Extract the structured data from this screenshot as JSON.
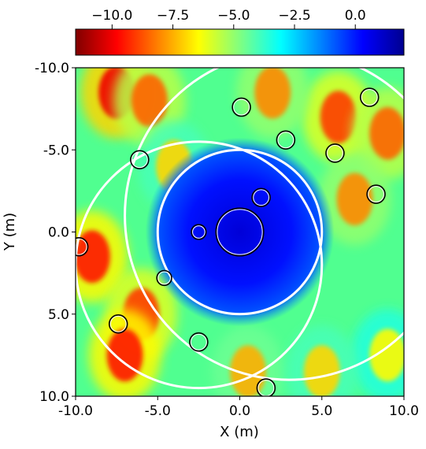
{
  "chart_data": {
    "type": "heatmap",
    "title": "",
    "xlabel": "X (m)",
    "ylabel": "Y (m)",
    "xlim": [
      -10.0,
      10.0
    ],
    "ylim": [
      10.0,
      -10.0
    ],
    "x_ticks": [
      "-10.0",
      "-5.0",
      "0.0",
      "5.0",
      "10.0"
    ],
    "y_ticks": [
      "-10.0",
      "-5.0",
      "0.0",
      "5.0",
      "10.0"
    ],
    "x_tick_values": [
      -10,
      -5,
      0,
      5,
      10
    ],
    "y_tick_values": [
      -10,
      -5,
      0,
      5,
      10
    ],
    "colorbar": {
      "orientation": "horizontal",
      "placement": "top",
      "colormap": "jet (reversed)",
      "range": [
        -11.5,
        2.0
      ],
      "tick_values": [
        -10.0,
        -7.5,
        -5.0,
        -2.5,
        0.0
      ],
      "tick_labels": [
        "−10.0",
        "−7.5",
        "−5.0",
        "−2.5",
        "0.0"
      ]
    },
    "colormap_stops": [
      "#800000",
      "#ff0000",
      "#ff8000",
      "#ffff00",
      "#80ff80",
      "#00ffff",
      "#0080ff",
      "#0000ff",
      "#00008f"
    ],
    "field": {
      "high_value_region": {
        "center": [
          0.0,
          0.0
        ],
        "radius": 5.0
      },
      "hot_spots": [
        {
          "x": -7.5,
          "y": -8.5,
          "value": -10.0
        },
        {
          "x": -9.0,
          "y": 1.5,
          "value": -9.5
        },
        {
          "x": -6.0,
          "y": 5.0,
          "value": -9.0
        },
        {
          "x": -7.0,
          "y": 7.5,
          "value": -9.5
        },
        {
          "x": -5.5,
          "y": -8.0,
          "value": -8.5
        },
        {
          "x": 6.0,
          "y": -7.0,
          "value": -9.0
        },
        {
          "x": 9.0,
          "y": -6.0,
          "value": -8.5
        },
        {
          "x": 7.0,
          "y": -2.0,
          "value": -8.0
        },
        {
          "x": -4.0,
          "y": -4.0,
          "value": -7.0
        },
        {
          "x": 0.5,
          "y": 8.5,
          "value": -7.5
        },
        {
          "x": 2.0,
          "y": -8.5,
          "value": -8.0
        },
        {
          "x": 9.0,
          "y": 7.5,
          "value": -6.5
        },
        {
          "x": 5.0,
          "y": 8.5,
          "value": -7.0
        }
      ]
    },
    "large_circles": [
      {
        "cx": 0.0,
        "cy": 0.0,
        "r": 5.0
      },
      {
        "cx": -2.5,
        "cy": 2.0,
        "r": 7.5
      },
      {
        "cx": 3.0,
        "cy": -1.0,
        "r": 10.0
      }
    ],
    "small_circles": [
      {
        "cx": 0.0,
        "cy": 0.0,
        "r": 1.45
      },
      {
        "cx": -2.5,
        "cy": 0.0,
        "r": 0.45
      },
      {
        "cx": 1.3,
        "cy": -2.1,
        "r": 0.55
      },
      {
        "cx": 0.1,
        "cy": -7.6,
        "r": 0.55
      },
      {
        "cx": 2.8,
        "cy": -5.6,
        "r": 0.55
      },
      {
        "cx": 5.8,
        "cy": -4.8,
        "r": 0.55
      },
      {
        "cx": 7.9,
        "cy": -8.2,
        "r": 0.55
      },
      {
        "cx": 8.3,
        "cy": -2.3,
        "r": 0.55
      },
      {
        "cx": -6.1,
        "cy": -4.4,
        "r": 0.55
      },
      {
        "cx": -9.8,
        "cy": 0.9,
        "r": 0.55
      },
      {
        "cx": -4.6,
        "cy": 2.8,
        "r": 0.45
      },
      {
        "cx": -7.4,
        "cy": 5.6,
        "r": 0.55
      },
      {
        "cx": -2.5,
        "cy": 6.7,
        "r": 0.55
      },
      {
        "cx": 1.6,
        "cy": 9.5,
        "r": 0.55
      }
    ]
  }
}
